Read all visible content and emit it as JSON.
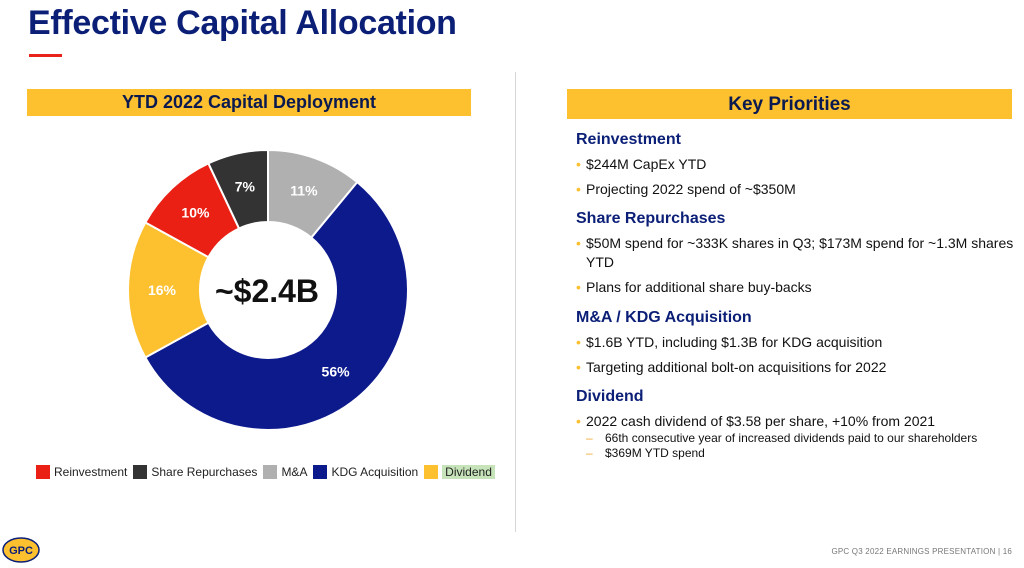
{
  "title": "Effective Capital Allocation",
  "chart_banner": "YTD 2022 Capital Deployment",
  "priorities_banner": "Key Priorities",
  "colors": {
    "navy": "#0b1f77",
    "yellow": "#fdc02f",
    "red": "#e8231a"
  },
  "chart_data": {
    "type": "pie",
    "title": "YTD 2022 Capital Deployment",
    "center_label": "~$2.4B",
    "categories": [
      "Reinvestment",
      "Share Repurchases",
      "M&A",
      "KDG Acquisition",
      "Dividend"
    ],
    "values": [
      10,
      7,
      11,
      56,
      16
    ],
    "value_labels": [
      "10%",
      "7%",
      "11%",
      "56%",
      "16%"
    ],
    "colors": [
      "#ea2014",
      "#333333",
      "#b0b0b0",
      "#0d1a8c",
      "#fdc02f"
    ],
    "legend_position": "bottom"
  },
  "sections": [
    {
      "title": "Reinvestment",
      "bullets": [
        {
          "text": "$244M CapEx YTD"
        },
        {
          "text": "Projecting 2022 spend of ~$350M"
        }
      ]
    },
    {
      "title": "Share Repurchases",
      "bullets": [
        {
          "text": "$50M spend for ~333K shares in Q3; $173M spend for ~1.3M shares YTD"
        },
        {
          "text": "Plans for additional share buy-backs"
        }
      ]
    },
    {
      "title": "M&A / KDG Acquisition",
      "bullets": [
        {
          "text": "$1.6B YTD, including $1.3B for KDG acquisition"
        },
        {
          "text": " Targeting additional bolt-on acquisitions for 2022"
        }
      ]
    },
    {
      "title": "Dividend",
      "bullets": [
        {
          "text": "2022 cash dividend of $3.58 per share, +10% from 2021"
        }
      ],
      "subbullets": [
        {
          "text": "66th consecutive year of increased dividends paid to our shareholders"
        },
        {
          "text": "$369M YTD spend"
        }
      ]
    }
  ],
  "logo_text": "GPC",
  "footer": "GPC Q3 2022 EARNINGS PRESENTATION  |  16"
}
